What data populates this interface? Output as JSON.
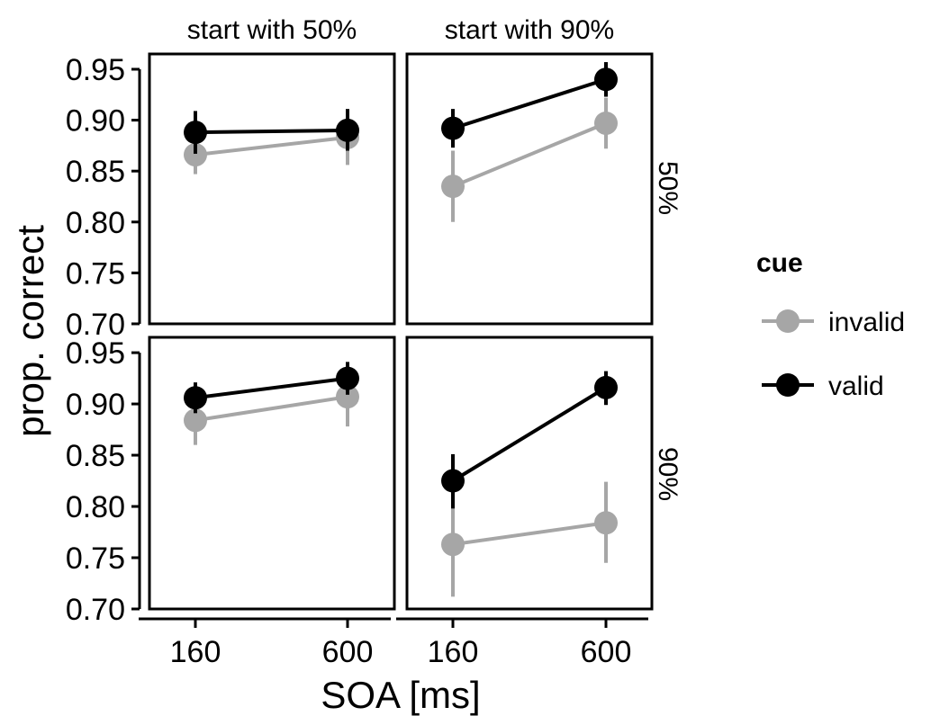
{
  "chart_data": {
    "type": "line",
    "ylabel": "prop. correct",
    "xlabel": "SOA [ms]",
    "x": [
      160,
      600
    ],
    "x_tick_labels": [
      "160",
      "600"
    ],
    "ylim": [
      0.7,
      0.965
    ],
    "y_ticks": [
      0.7,
      0.75,
      0.8,
      0.85,
      0.9,
      0.95
    ],
    "y_tick_labels": [
      "0.70",
      "0.75",
      "0.80",
      "0.85",
      "0.90",
      "0.95"
    ],
    "grid": false,
    "legend": {
      "title": "cue",
      "placement": "right",
      "entries": [
        {
          "name": "invalid",
          "color": "#a6a6a6"
        },
        {
          "name": "valid",
          "color": "#000000"
        }
      ]
    },
    "columns": [
      "start with 50%",
      "start with 90%"
    ],
    "rows": [
      "50%",
      "90%"
    ],
    "panels": [
      {
        "column": "start with 50%",
        "row": "50%",
        "series": [
          {
            "name": "invalid",
            "values": [
              0.866,
              0.883
            ],
            "error": [
              [
                0.847,
                0.885
              ],
              [
                0.856,
                0.91
              ]
            ]
          },
          {
            "name": "valid",
            "values": [
              0.888,
              0.89
            ],
            "error": [
              [
                0.867,
                0.909
              ],
              [
                0.87,
                0.911
              ]
            ]
          }
        ]
      },
      {
        "column": "start with 90%",
        "row": "50%",
        "series": [
          {
            "name": "invalid",
            "values": [
              0.835,
              0.897
            ],
            "error": [
              [
                0.8,
                0.87
              ],
              [
                0.872,
                0.922
              ]
            ]
          },
          {
            "name": "valid",
            "values": [
              0.892,
              0.94
            ],
            "error": [
              [
                0.873,
                0.911
              ],
              [
                0.923,
                0.957
              ]
            ]
          }
        ]
      },
      {
        "column": "start with 50%",
        "row": "90%",
        "series": [
          {
            "name": "invalid",
            "values": [
              0.884,
              0.907
            ],
            "error": [
              [
                0.86,
                0.908
              ],
              [
                0.878,
                0.935
              ]
            ]
          },
          {
            "name": "valid",
            "values": [
              0.906,
              0.925
            ],
            "error": [
              [
                0.891,
                0.921
              ],
              [
                0.909,
                0.941
              ]
            ]
          }
        ]
      },
      {
        "column": "start with 90%",
        "row": "90%",
        "series": [
          {
            "name": "invalid",
            "values": [
              0.763,
              0.784
            ],
            "error": [
              [
                0.712,
                0.813
              ],
              [
                0.745,
                0.824
              ]
            ]
          },
          {
            "name": "valid",
            "values": [
              0.825,
              0.916
            ],
            "error": [
              [
                0.798,
                0.851
              ],
              [
                0.899,
                0.932
              ]
            ]
          }
        ]
      }
    ]
  }
}
